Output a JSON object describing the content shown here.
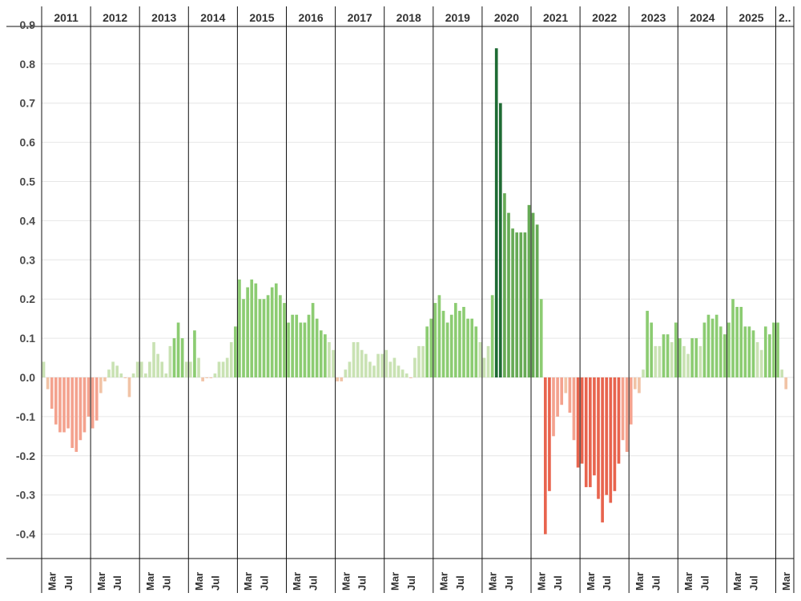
{
  "chart_data": {
    "type": "bar",
    "title": "",
    "xlabel": "",
    "ylabel": "",
    "ylim": [
      -0.45,
      0.92
    ],
    "y_ticks": [
      "0.9",
      "0.8",
      "0.7",
      "0.6",
      "0.5",
      "0.4",
      "0.3",
      "0.2",
      "0.1",
      "0.0",
      "-0.1",
      "-0.2",
      "-0.3",
      "-0.4"
    ],
    "y_tick_values": [
      0.9,
      0.8,
      0.7,
      0.6,
      0.5,
      0.4,
      0.3,
      0.2,
      0.1,
      0.0,
      -0.1,
      -0.2,
      -0.3,
      -0.4
    ],
    "year_labels": [
      "2011",
      "2012",
      "2013",
      "2014",
      "2015",
      "2016",
      "2017",
      "2018",
      "2019",
      "2020",
      "2021",
      "2022",
      "2023",
      "2024",
      "2025",
      "2.."
    ],
    "month_labels": [
      "Mar",
      "Jul"
    ],
    "grid": true,
    "legend": "none",
    "color_scale": {
      "negative_light": "#f1c3a6",
      "negative_mid": "#f4a28e",
      "negative_strong": "#e8644e",
      "positive_light": "#c9e2b3",
      "positive_mid": "#8ccc72",
      "positive_strong": "#66aa55",
      "positive_darkest": "#1f6b34"
    },
    "values": [
      0.04,
      -0.03,
      -0.08,
      -0.12,
      -0.14,
      -0.14,
      -0.13,
      -0.18,
      -0.19,
      -0.16,
      -0.14,
      -0.1,
      -0.13,
      -0.11,
      -0.04,
      -0.01,
      0.02,
      0.04,
      0.03,
      0.01,
      0.0,
      -0.05,
      0.01,
      0.04,
      0.04,
      0.01,
      0.04,
      0.09,
      0.06,
      0.04,
      0.01,
      0.08,
      0.1,
      0.14,
      0.1,
      0.04,
      0.04,
      0.12,
      0.05,
      -0.01,
      0.0,
      0.0,
      0.01,
      0.04,
      0.04,
      0.05,
      0.09,
      0.13,
      0.25,
      0.2,
      0.23,
      0.25,
      0.24,
      0.2,
      0.2,
      0.21,
      0.23,
      0.24,
      0.21,
      0.19,
      0.14,
      0.16,
      0.16,
      0.14,
      0.14,
      0.16,
      0.19,
      0.15,
      0.12,
      0.11,
      0.09,
      0.07,
      -0.01,
      -0.01,
      0.02,
      0.04,
      0.09,
      0.09,
      0.07,
      0.06,
      0.04,
      0.03,
      0.06,
      0.06,
      0.07,
      0.04,
      0.05,
      0.03,
      0.02,
      0.01,
      0.0,
      0.05,
      0.08,
      0.08,
      0.13,
      0.15,
      0.19,
      0.21,
      0.17,
      0.14,
      0.16,
      0.19,
      0.17,
      0.18,
      0.15,
      0.15,
      0.13,
      0.09,
      0.05,
      0.08,
      0.21,
      0.84,
      0.7,
      0.47,
      0.42,
      0.38,
      0.37,
      0.37,
      0.37,
      0.44,
      0.42,
      0.39,
      0.2,
      -0.4,
      -0.29,
      -0.15,
      -0.1,
      -0.07,
      -0.04,
      -0.09,
      -0.16,
      -0.23,
      -0.22,
      -0.28,
      -0.28,
      -0.25,
      -0.31,
      -0.37,
      -0.3,
      -0.32,
      -0.29,
      -0.22,
      -0.16,
      -0.19,
      -0.12,
      -0.03,
      -0.04,
      0.02,
      0.17,
      0.14,
      0.08,
      0.08,
      0.11,
      0.11,
      0.09,
      0.14,
      0.1,
      0.08,
      0.06,
      0.1,
      0.1,
      0.08,
      0.14,
      0.16,
      0.15,
      0.16,
      0.13,
      0.11,
      0.14,
      0.2,
      0.18,
      0.18,
      0.13,
      0.13,
      0.12,
      0.09,
      0.07,
      0.13,
      0.11,
      0.14,
      0.14,
      0.02,
      -0.03
    ]
  }
}
